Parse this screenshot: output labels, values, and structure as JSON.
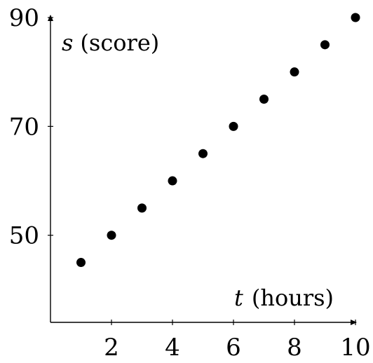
{
  "chart_data": {
    "type": "scatter",
    "x": [
      1,
      2,
      3,
      4,
      5,
      6,
      7,
      8,
      9,
      10
    ],
    "y": [
      45,
      50,
      55,
      60,
      65,
      70,
      75,
      80,
      85,
      90
    ],
    "xlabel": {
      "var": "t",
      "unit": "(hours)"
    },
    "ylabel": {
      "var": "s",
      "unit": "(score)"
    },
    "xlim": [
      0,
      10
    ],
    "ylim": [
      34,
      90
    ],
    "xticks": [
      2,
      4,
      6,
      8,
      10
    ],
    "yticks": [
      50,
      70,
      90
    ],
    "grid": false,
    "legend": "none",
    "marker_color": "#000000"
  }
}
